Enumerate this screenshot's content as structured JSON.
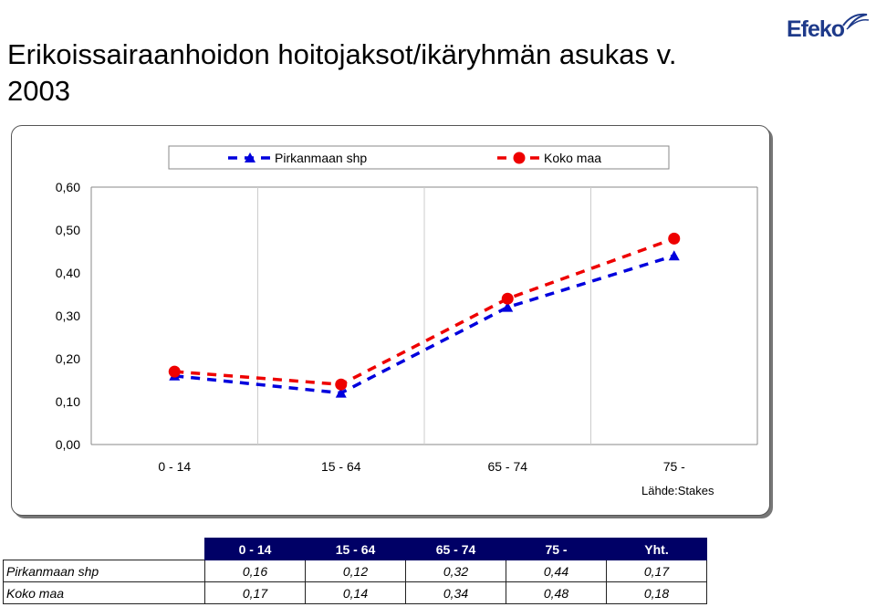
{
  "title": "Erikoissairaanhoidon hoitojaksot/ikäryhmän asukas v. 2003",
  "logo": {
    "text": "Efeko",
    "brand_color": "#1e3a8a"
  },
  "source": "Lähde:Stakes",
  "chart_data": {
    "type": "line",
    "categories": [
      "0 - 14",
      "15 - 64",
      "65 - 74",
      "75 -"
    ],
    "series": [
      {
        "name": "Pirkanmaan shp",
        "values": [
          0.16,
          0.12,
          0.32,
          0.44
        ],
        "color": "#0000dd",
        "marker": "triangle"
      },
      {
        "name": "Koko maa",
        "values": [
          0.17,
          0.14,
          0.34,
          0.48
        ],
        "color": "#ee0000",
        "marker": "circle"
      }
    ],
    "ylim": [
      0,
      0.6
    ],
    "yticks": [
      "0,00",
      "0,10",
      "0,20",
      "0,30",
      "0,40",
      "0,50",
      "0,60"
    ],
    "grid": "vertical",
    "legend": "top"
  },
  "table": {
    "headers": [
      "0 - 14",
      "15 - 64",
      "65 - 74",
      "75 -",
      "Yht."
    ],
    "rows": [
      {
        "label": "Pirkanmaan shp",
        "values": [
          "0,16",
          "0,12",
          "0,32",
          "0,44",
          "0,17"
        ]
      },
      {
        "label": "Koko maa",
        "values": [
          "0,17",
          "0,14",
          "0,34",
          "0,48",
          "0,18"
        ]
      }
    ]
  }
}
